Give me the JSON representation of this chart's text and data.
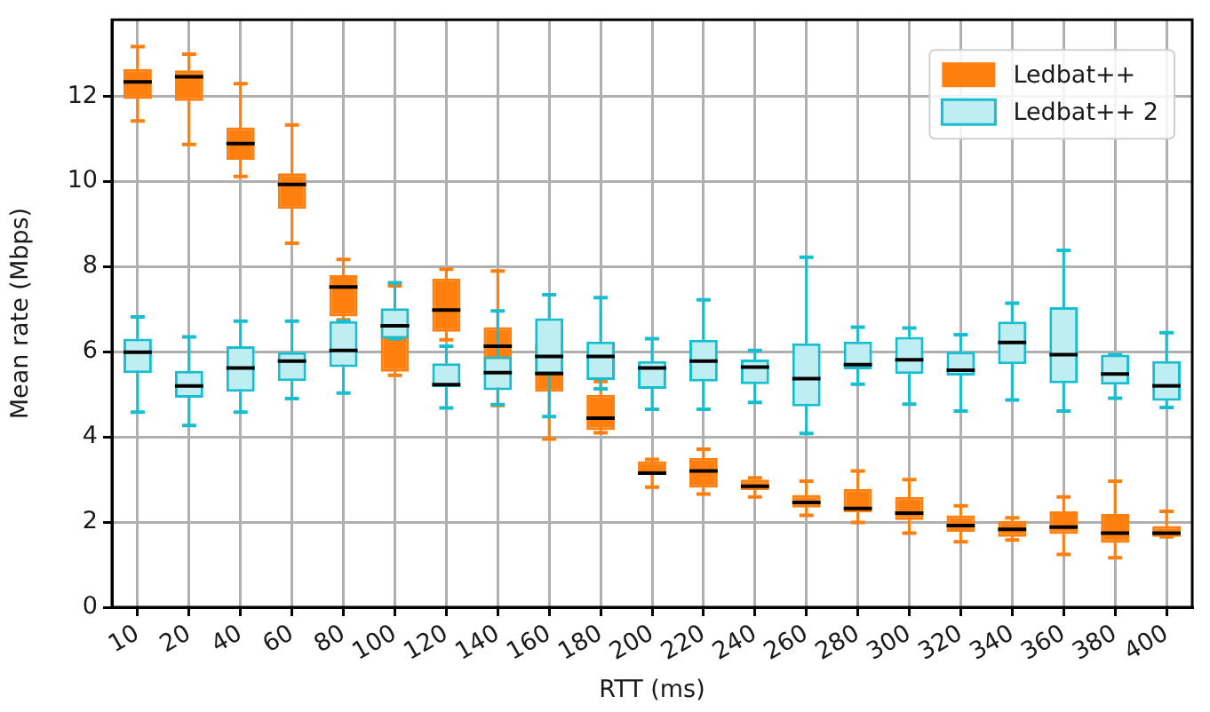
{
  "chart_data": {
    "type": "box",
    "xlabel": "RTT (ms)",
    "ylabel": "Mean rate (Mbps)",
    "categories": [
      "10",
      "20",
      "40",
      "60",
      "80",
      "100",
      "120",
      "140",
      "160",
      "180",
      "200",
      "220",
      "240",
      "260",
      "280",
      "300",
      "320",
      "340",
      "360",
      "380",
      "400"
    ],
    "ylim": [
      0,
      13.8
    ],
    "yticks": [
      0,
      2,
      4,
      6,
      8,
      10,
      12
    ],
    "grid": true,
    "legend": "top right",
    "series": [
      {
        "name": "Ledbat++",
        "color": "#ff7f0e",
        "boxes": [
          {
            "low": 11.42,
            "q1": 11.94,
            "median": 12.34,
            "q3": 12.64,
            "high": 13.17
          },
          {
            "low": 10.87,
            "q1": 11.89,
            "median": 12.46,
            "q3": 12.61,
            "high": 12.99
          },
          {
            "low": 10.12,
            "q1": 10.51,
            "median": 10.89,
            "q3": 11.27,
            "high": 12.3
          },
          {
            "low": 8.55,
            "q1": 9.36,
            "median": 9.93,
            "q3": 10.19,
            "high": 11.33
          },
          {
            "low": 6.75,
            "q1": 6.83,
            "median": 7.52,
            "q3": 7.8,
            "high": 8.17
          },
          {
            "low": 5.45,
            "q1": 5.53,
            "median": 6.61,
            "q3": 6.9,
            "high": 7.55
          },
          {
            "low": 6.28,
            "q1": 6.47,
            "median": 6.98,
            "q3": 7.72,
            "high": 7.94
          },
          {
            "low": 4.74,
            "q1": 5.6,
            "median": 6.13,
            "q3": 6.58,
            "high": 7.9
          },
          {
            "low": 3.95,
            "q1": 5.06,
            "median": 5.49,
            "q3": 6.2,
            "high": 6.6
          },
          {
            "low": 4.1,
            "q1": 4.16,
            "median": 4.44,
            "q3": 4.99,
            "high": 5.3
          },
          {
            "low": 2.82,
            "q1": 3.13,
            "median": 3.15,
            "q3": 3.43,
            "high": 3.47
          },
          {
            "low": 2.66,
            "q1": 2.81,
            "median": 3.2,
            "q3": 3.51,
            "high": 3.71
          },
          {
            "low": 2.59,
            "q1": 2.75,
            "median": 2.84,
            "q3": 3.0,
            "high": 3.04
          },
          {
            "low": 2.16,
            "q1": 2.34,
            "median": 2.46,
            "q3": 2.64,
            "high": 2.96
          },
          {
            "low": 1.99,
            "q1": 2.23,
            "median": 2.32,
            "q3": 2.78,
            "high": 3.2
          },
          {
            "low": 1.74,
            "q1": 2.05,
            "median": 2.21,
            "q3": 2.59,
            "high": 3.0
          },
          {
            "low": 1.54,
            "q1": 1.77,
            "median": 1.92,
            "q3": 2.16,
            "high": 2.38
          },
          {
            "low": 1.58,
            "q1": 1.65,
            "median": 1.83,
            "q3": 2.03,
            "high": 2.1
          },
          {
            "low": 1.24,
            "q1": 1.72,
            "median": 1.88,
            "q3": 2.25,
            "high": 2.59
          },
          {
            "low": 1.16,
            "q1": 1.51,
            "median": 1.74,
            "q3": 2.19,
            "high": 2.96
          },
          {
            "low": 1.65,
            "q1": 1.65,
            "median": 1.74,
            "q3": 1.91,
            "high": 2.25
          }
        ]
      },
      {
        "name": "Ledbat++ 2",
        "color": "#17becf",
        "boxes": [
          {
            "low": 4.58,
            "q1": 5.5,
            "median": 5.99,
            "q3": 6.31,
            "high": 6.82
          },
          {
            "low": 4.27,
            "q1": 4.92,
            "median": 5.2,
            "q3": 5.55,
            "high": 6.35
          },
          {
            "low": 4.58,
            "q1": 5.06,
            "median": 5.62,
            "q3": 6.13,
            "high": 6.72
          },
          {
            "low": 4.9,
            "q1": 5.31,
            "median": 5.78,
            "q3": 5.99,
            "high": 6.72
          },
          {
            "low": 5.03,
            "q1": 5.64,
            "median": 6.03,
            "q3": 6.72,
            "high": 6.72
          },
          {
            "low": 6.31,
            "q1": 6.31,
            "median": 6.61,
            "q3": 7.02,
            "high": 7.62
          },
          {
            "low": 4.68,
            "q1": 5.17,
            "median": 5.23,
            "q3": 5.73,
            "high": 6.13
          },
          {
            "low": 4.76,
            "q1": 5.1,
            "median": 5.51,
            "q3": 5.89,
            "high": 6.96
          },
          {
            "low": 4.48,
            "q1": 5.48,
            "median": 5.89,
            "q3": 6.79,
            "high": 7.34
          },
          {
            "low": 5.13,
            "q1": 5.34,
            "median": 5.89,
            "q3": 6.24,
            "high": 7.27
          },
          {
            "low": 4.65,
            "q1": 5.13,
            "median": 5.62,
            "q3": 5.78,
            "high": 6.31
          },
          {
            "low": 4.65,
            "q1": 5.3,
            "median": 5.78,
            "q3": 6.28,
            "high": 7.22
          },
          {
            "low": 4.81,
            "q1": 5.24,
            "median": 5.64,
            "q3": 5.82,
            "high": 6.03
          },
          {
            "low": 4.08,
            "q1": 4.72,
            "median": 5.37,
            "q3": 6.2,
            "high": 8.22
          },
          {
            "low": 5.24,
            "q1": 5.59,
            "median": 5.7,
            "q3": 6.24,
            "high": 6.58
          },
          {
            "low": 4.77,
            "q1": 5.48,
            "median": 5.81,
            "q3": 6.35,
            "high": 6.56
          },
          {
            "low": 4.61,
            "q1": 5.44,
            "median": 5.57,
            "q3": 6.0,
            "high": 6.4
          },
          {
            "low": 4.87,
            "q1": 5.71,
            "median": 6.22,
            "q3": 6.71,
            "high": 7.14
          },
          {
            "low": 4.61,
            "q1": 5.26,
            "median": 5.93,
            "q3": 7.05,
            "high": 8.38
          },
          {
            "low": 4.91,
            "q1": 5.23,
            "median": 5.48,
            "q3": 5.93,
            "high": 5.93
          },
          {
            "low": 4.69,
            "q1": 4.85,
            "median": 5.2,
            "q3": 5.78,
            "high": 6.45
          }
        ]
      }
    ]
  }
}
